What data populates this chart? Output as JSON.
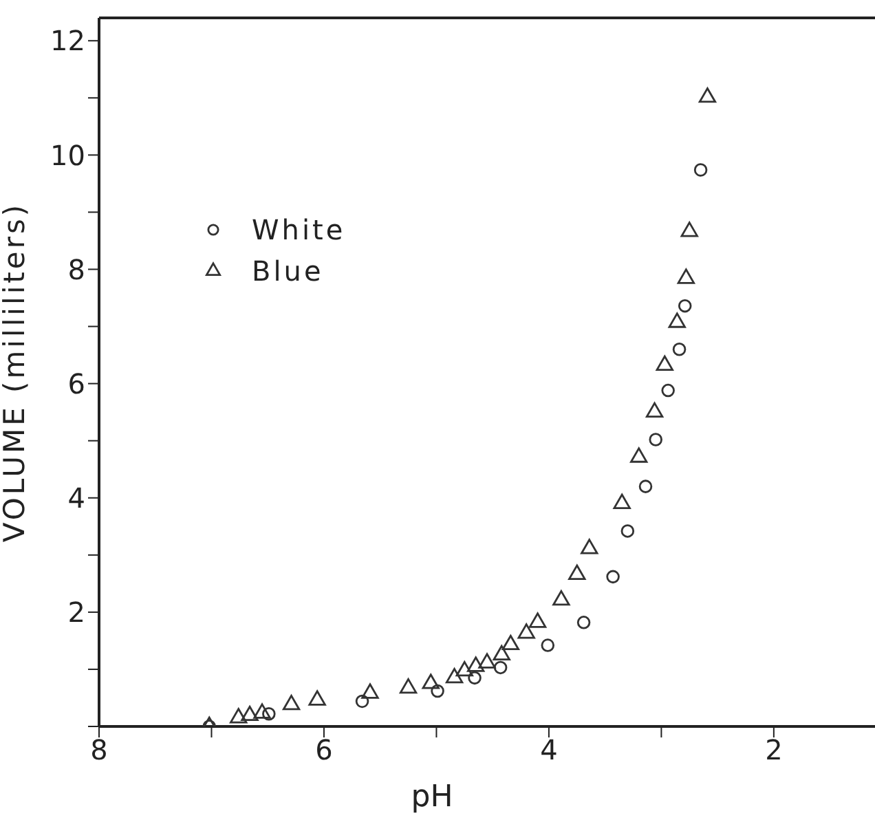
{
  "chart_data": {
    "type": "scatter",
    "xlabel": "pH",
    "ylabel": "VOLUME (milliliters)",
    "xlim": [
      8,
      1.1
    ],
    "ylim": [
      0,
      12.4
    ],
    "xticks": [
      8,
      {
        "value": 7,
        "label": null
      },
      6,
      {
        "value": 5,
        "label": null
      },
      4,
      {
        "value": 3,
        "label": null
      },
      2
    ],
    "yticks": [
      {
        "value": 0,
        "label": null
      },
      {
        "value": 1,
        "label": null
      },
      2,
      {
        "value": 3,
        "label": null
      },
      4,
      {
        "value": 5,
        "label": null
      },
      6,
      {
        "value": 7,
        "label": null
      },
      8,
      {
        "value": 9,
        "label": null
      },
      10,
      {
        "value": 11,
        "label": null
      },
      12
    ],
    "legend": "top left",
    "grid": false,
    "series": [
      {
        "name": "White",
        "color": "#333333",
        "marker": "circle",
        "x": [
          7.02,
          6.49,
          5.66,
          4.99,
          4.66,
          4.43,
          4.01,
          3.69,
          3.43,
          3.3,
          3.14,
          3.05,
          2.94,
          2.84,
          2.79,
          2.65
        ],
        "values": [
          0,
          0.22,
          0.44,
          0.62,
          0.85,
          1.03,
          1.42,
          1.82,
          2.62,
          3.42,
          4.2,
          5.02,
          5.88,
          6.6,
          7.36,
          9.74
        ]
      },
      {
        "name": "Blue",
        "color": "#333333",
        "marker": "triangle",
        "x": [
          7.02,
          6.76,
          6.66,
          6.55,
          6.29,
          6.06,
          5.59,
          5.25,
          5.05,
          4.84,
          4.75,
          4.65,
          4.55,
          4.42,
          4.34,
          4.2,
          4.1,
          3.89,
          3.75,
          3.64,
          3.35,
          3.2,
          3.06,
          2.97,
          2.86,
          2.78,
          2.75,
          2.59
        ],
        "values": [
          0,
          0.15,
          0.19,
          0.23,
          0.38,
          0.46,
          0.58,
          0.67,
          0.75,
          0.85,
          0.97,
          1.05,
          1.11,
          1.25,
          1.43,
          1.63,
          1.82,
          2.21,
          2.66,
          3.11,
          3.9,
          4.71,
          5.5,
          6.32,
          7.07,
          7.84,
          8.66,
          11.01
        ]
      }
    ]
  }
}
